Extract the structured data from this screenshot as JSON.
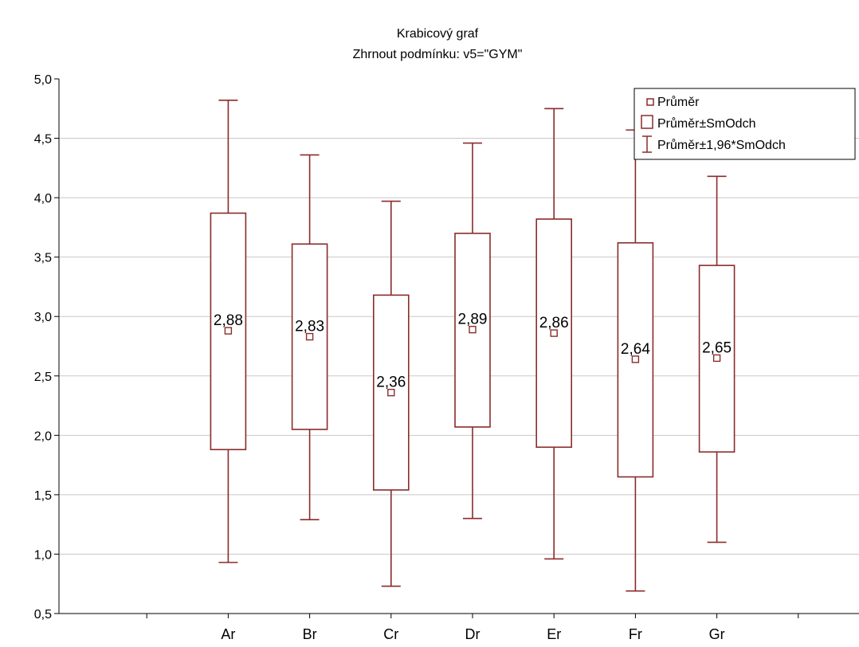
{
  "chart_data": {
    "type": "box",
    "title": "Krabicový graf",
    "subtitle": "Zhrnout podmínku: v5=\"GYM\"",
    "categories": [
      "Ar",
      "Br",
      "Cr",
      "Dr",
      "Er",
      "Fr",
      "Gr"
    ],
    "mean": [
      2.88,
      2.83,
      2.36,
      2.89,
      2.86,
      2.64,
      2.65
    ],
    "mean_labels": [
      "2,88",
      "2,83",
      "2,36",
      "2,89",
      "2,86",
      "2,64",
      "2,65"
    ],
    "box_low": [
      1.88,
      2.05,
      1.54,
      2.07,
      1.9,
      1.65,
      1.86
    ],
    "box_high": [
      3.87,
      3.61,
      3.18,
      3.7,
      3.82,
      3.62,
      3.43
    ],
    "whisker_low": [
      0.93,
      1.29,
      0.73,
      1.3,
      0.96,
      0.69,
      1.1
    ],
    "whisker_high": [
      4.82,
      4.36,
      3.97,
      4.46,
      4.75,
      4.57,
      4.18
    ],
    "ylim": [
      0.5,
      5.0
    ],
    "ytick_values": [
      0.5,
      1.0,
      1.5,
      2.0,
      2.5,
      3.0,
      3.5,
      4.0,
      4.5,
      5.0
    ],
    "ytick_labels": [
      "0,5",
      "1,0",
      "1,5",
      "2,0",
      "2,5",
      "3,0",
      "3,5",
      "4,0",
      "4,5",
      "5,0"
    ],
    "grid": true,
    "legend_position": "top-right",
    "legend": [
      {
        "label": "Průměr",
        "symbol": "small-square"
      },
      {
        "label": "Průměr±SmOdch",
        "symbol": "box"
      },
      {
        "label": "Průměr±1,96*SmOdch",
        "symbol": "whisker"
      }
    ],
    "colors": {
      "series": "#8b2b2b",
      "grid": "#c8c8c8",
      "axis": "#000000",
      "text": "#000000"
    }
  }
}
